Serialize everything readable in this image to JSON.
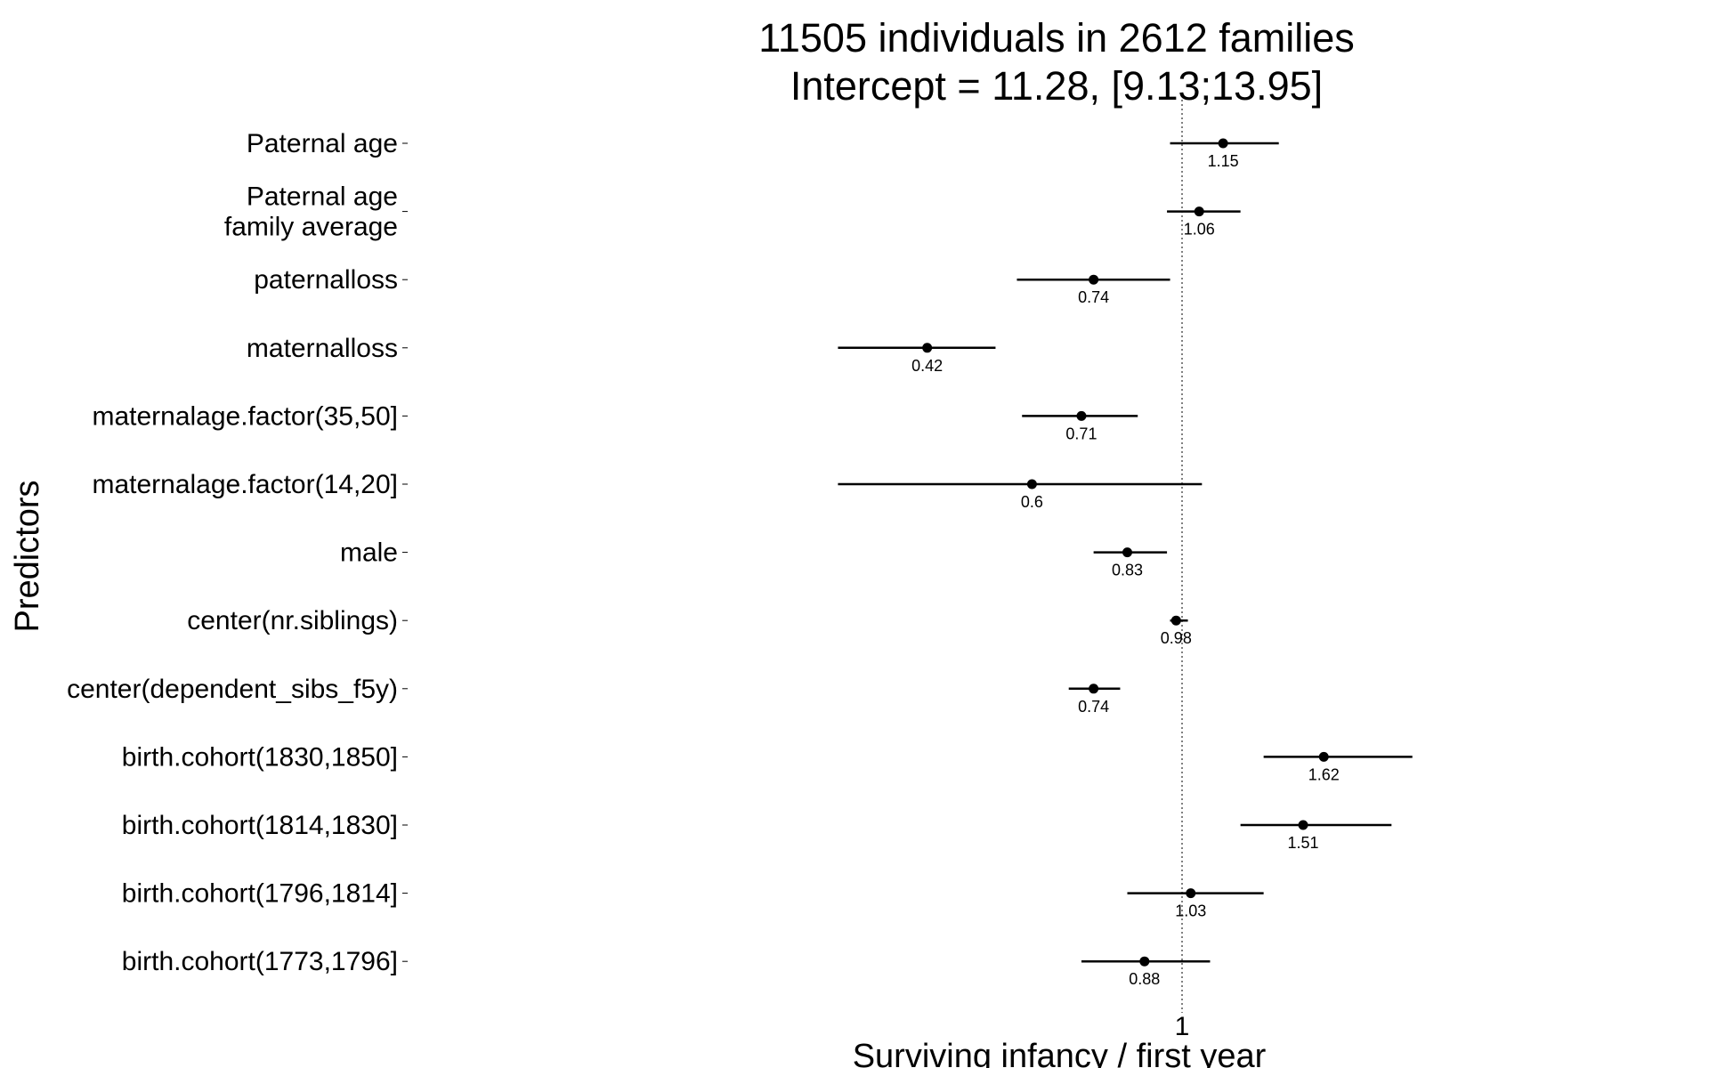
{
  "chart_data": {
    "type": "forest",
    "title_lines": [
      "11505 individuals in 2612 families",
      "Intercept = 11.28, [9.13;13.95]"
    ],
    "xlabel": "Surviving infancy / first year",
    "ylabel": "Predictors",
    "x_scale": "log",
    "reference_line": 1,
    "x_ticks": [
      1
    ],
    "x_tick_labels": [
      "1"
    ],
    "grid": false,
    "rows": [
      {
        "label": [
          "Paternal age"
        ],
        "estimate": 1.15,
        "estimate_label": "1.15",
        "ci_low": 0.96,
        "ci_high": 1.39
      },
      {
        "label": [
          "Paternal age",
          "family average"
        ],
        "estimate": 1.06,
        "estimate_label": "1.06",
        "ci_low": 0.95,
        "ci_high": 1.22
      },
      {
        "label": [
          "paternalloss"
        ],
        "estimate": 0.74,
        "estimate_label": "0.74",
        "ci_low": 0.57,
        "ci_high": 0.96
      },
      {
        "label": [
          "maternalloss"
        ],
        "estimate": 0.42,
        "estimate_label": "0.42",
        "ci_low": 0.31,
        "ci_high": 0.53
      },
      {
        "label": [
          "maternalage.factor(35,50]"
        ],
        "estimate": 0.71,
        "estimate_label": "0.71",
        "ci_low": 0.58,
        "ci_high": 0.86
      },
      {
        "label": [
          "maternalage.factor(14,20]"
        ],
        "estimate": 0.6,
        "estimate_label": "0.6",
        "ci_low": 0.31,
        "ci_high": 1.07
      },
      {
        "label": [
          "male"
        ],
        "estimate": 0.83,
        "estimate_label": "0.83",
        "ci_low": 0.74,
        "ci_high": 0.95
      },
      {
        "label": [
          "center(nr.siblings)"
        ],
        "estimate": 0.98,
        "estimate_label": "0.98",
        "ci_low": 0.96,
        "ci_high": 1.02
      },
      {
        "label": [
          "center(dependent_sibs_f5y)"
        ],
        "estimate": 0.74,
        "estimate_label": "0.74",
        "ci_low": 0.68,
        "ci_high": 0.81
      },
      {
        "label": [
          "birth.cohort(1830,1850]"
        ],
        "estimate": 1.62,
        "estimate_label": "1.62",
        "ci_low": 1.32,
        "ci_high": 2.19
      },
      {
        "label": [
          "birth.cohort(1814,1830]"
        ],
        "estimate": 1.51,
        "estimate_label": "1.51",
        "ci_low": 1.22,
        "ci_high": 2.04
      },
      {
        "label": [
          "birth.cohort(1796,1814]"
        ],
        "estimate": 1.03,
        "estimate_label": "1.03",
        "ci_low": 0.83,
        "ci_high": 1.32
      },
      {
        "label": [
          "birth.cohort(1773,1796]"
        ],
        "estimate": 0.88,
        "estimate_label": "0.88",
        "ci_low": 0.71,
        "ci_high": 1.1
      }
    ]
  }
}
